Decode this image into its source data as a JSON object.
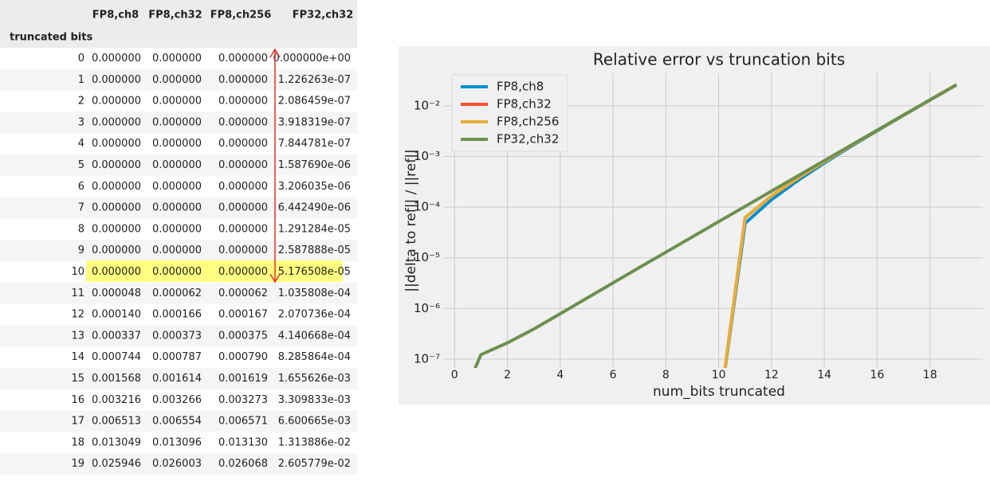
{
  "table": {
    "index_name": "truncated bits",
    "columns": [
      "FP8,ch8",
      "FP8,ch32",
      "FP8,ch256",
      "FP32,ch32"
    ],
    "rows": [
      [
        "0",
        "0.000000",
        "0.000000",
        "0.000000",
        "0.000000e+00"
      ],
      [
        "1",
        "0.000000",
        "0.000000",
        "0.000000",
        "1.226263e-07"
      ],
      [
        "2",
        "0.000000",
        "0.000000",
        "0.000000",
        "2.086459e-07"
      ],
      [
        "3",
        "0.000000",
        "0.000000",
        "0.000000",
        "3.918319e-07"
      ],
      [
        "4",
        "0.000000",
        "0.000000",
        "0.000000",
        "7.844781e-07"
      ],
      [
        "5",
        "0.000000",
        "0.000000",
        "0.000000",
        "1.587690e-06"
      ],
      [
        "6",
        "0.000000",
        "0.000000",
        "0.000000",
        "3.206035e-06"
      ],
      [
        "7",
        "0.000000",
        "0.000000",
        "0.000000",
        "6.442490e-06"
      ],
      [
        "8",
        "0.000000",
        "0.000000",
        "0.000000",
        "1.291284e-05"
      ],
      [
        "9",
        "0.000000",
        "0.000000",
        "0.000000",
        "2.587888e-05"
      ],
      [
        "10",
        "0.000000",
        "0.000000",
        "0.000000",
        "5.176508e-05"
      ],
      [
        "11",
        "0.000048",
        "0.000062",
        "0.000062",
        "1.035808e-04"
      ],
      [
        "12",
        "0.000140",
        "0.000166",
        "0.000167",
        "2.070736e-04"
      ],
      [
        "13",
        "0.000337",
        "0.000373",
        "0.000375",
        "4.140668e-04"
      ],
      [
        "14",
        "0.000744",
        "0.000787",
        "0.000790",
        "8.285864e-04"
      ],
      [
        "15",
        "0.001568",
        "0.001614",
        "0.001619",
        "1.655626e-03"
      ],
      [
        "16",
        "0.003216",
        "0.003266",
        "0.003273",
        "3.309833e-03"
      ],
      [
        "17",
        "0.006513",
        "0.006554",
        "0.006571",
        "6.600665e-03"
      ],
      [
        "18",
        "0.013049",
        "0.013096",
        "0.013130",
        "1.313886e-02"
      ],
      [
        "19",
        "0.025946",
        "0.026003",
        "0.026068",
        "2.605779e-02"
      ]
    ]
  },
  "chart_data": {
    "type": "line",
    "title": "Relative error vs truncation bits",
    "x_label": "num_bits truncated",
    "y_label": "||delta to ref|| / ||ref||",
    "x": [
      0,
      1,
      2,
      3,
      4,
      5,
      6,
      7,
      8,
      9,
      10,
      11,
      12,
      13,
      14,
      15,
      16,
      17,
      18,
      19
    ],
    "series": [
      {
        "name": "FP8,ch8",
        "color": "#008fd5",
        "values": [
          0,
          0,
          0,
          0,
          0,
          0,
          0,
          0,
          0,
          0,
          0,
          4.8e-05,
          0.00014,
          0.000337,
          0.000744,
          0.001568,
          0.003216,
          0.006513,
          0.013049,
          0.025946
        ]
      },
      {
        "name": "FP8,ch32",
        "color": "#fc4f30",
        "values": [
          0,
          0,
          0,
          0,
          0,
          0,
          0,
          0,
          0,
          0,
          0,
          6.2e-05,
          0.000166,
          0.000373,
          0.000787,
          0.001614,
          0.003266,
          0.006554,
          0.013096,
          0.026003
        ]
      },
      {
        "name": "FP8,ch256",
        "color": "#e5ae38",
        "values": [
          0,
          0,
          0,
          0,
          0,
          0,
          0,
          0,
          0,
          0,
          0,
          6.2e-05,
          0.000167,
          0.000375,
          0.00079,
          0.001619,
          0.003273,
          0.006571,
          0.01313,
          0.026068
        ]
      },
      {
        "name": "FP32,ch32",
        "color": "#6d904f",
        "values": [
          0,
          1.226263e-07,
          2.086459e-07,
          3.918319e-07,
          7.844781e-07,
          1.58769e-06,
          3.206035e-06,
          6.44249e-06,
          1.291284e-05,
          2.587888e-05,
          5.176508e-05,
          0.0001035808,
          0.0002070736,
          0.0004140668,
          0.0008285864,
          0.001655626,
          0.003309833,
          0.006600665,
          0.01313886,
          0.02605779
        ]
      }
    ],
    "xlim": [
      -0.4,
      20
    ],
    "xticks": [
      0,
      2,
      4,
      6,
      8,
      10,
      12,
      14,
      16,
      18
    ],
    "ylim": [
      6.7e-08,
      0.044
    ],
    "log_y": true,
    "grid": true,
    "legend": "upper left",
    "yticks": [
      {
        "value": 1e-07,
        "label": "10⁻⁷"
      },
      {
        "value": 1e-06,
        "label": "10⁻⁶"
      },
      {
        "value": 1e-05,
        "label": "10⁻⁵"
      },
      {
        "value": 0.0001,
        "label": "10⁻⁴"
      },
      {
        "value": 0.001,
        "label": "10⁻³"
      },
      {
        "value": 0.01,
        "label": "10⁻²"
      }
    ]
  }
}
